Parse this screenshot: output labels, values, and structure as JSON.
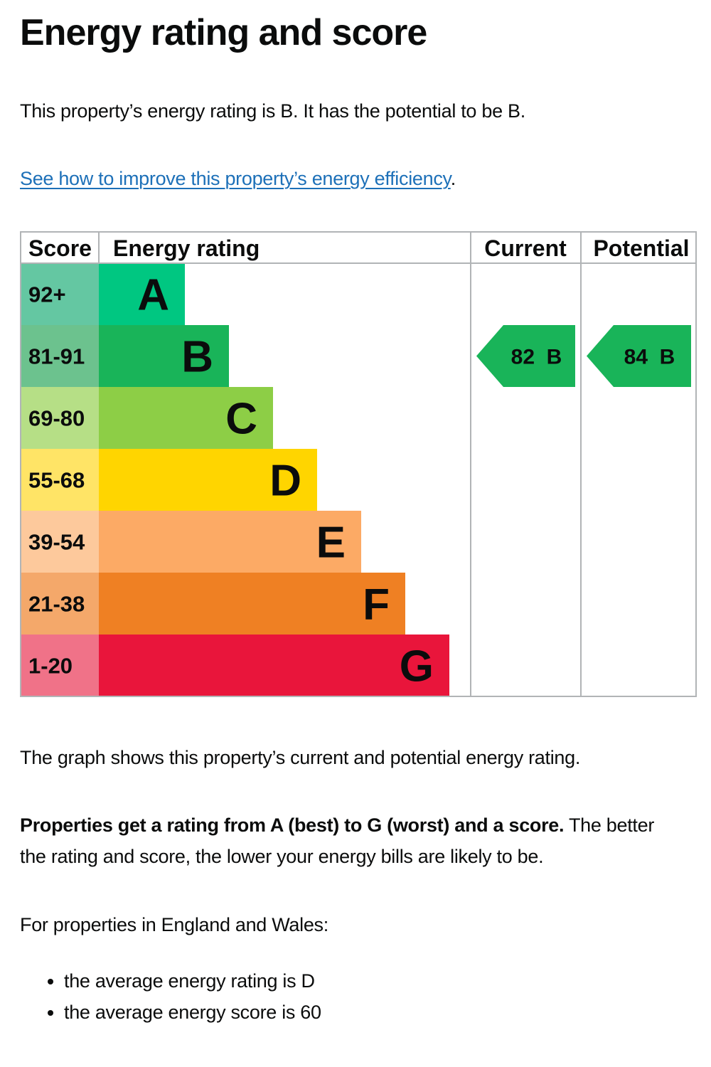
{
  "page": {
    "title": "Energy rating and score",
    "intro": "This property’s energy rating is B. It has the potential to be B.",
    "improve_link": "See how to improve this property’s energy efficiency",
    "improve_link_suffix": ".",
    "graph_caption": "The graph shows this property’s current and potential energy rating.",
    "ratings_bold": "Properties get a rating from A (best) to G (worst) and a score.",
    "ratings_rest_1": " The better",
    "ratings_rest_2": "the rating and score, the lower your energy bills are likely to be.",
    "england_wales": "For properties in England and Wales:",
    "bullets": [
      "the average energy rating is D",
      "the average energy score is 60"
    ]
  },
  "chart_data": {
    "type": "bar",
    "headers": {
      "score": "Score",
      "rating": "Energy rating",
      "current": "Current",
      "potential": "Potential"
    },
    "bands": [
      {
        "letter": "A",
        "range": "92+",
        "color": "#00c781",
        "score_color": "#64c7a2"
      },
      {
        "letter": "B",
        "range": "81-91",
        "color": "#19b459",
        "score_color": "#6cc28e"
      },
      {
        "letter": "C",
        "range": "69-80",
        "color": "#8dce46",
        "score_color": "#b6df86"
      },
      {
        "letter": "D",
        "range": "55-68",
        "color": "#ffd500",
        "score_color": "#ffe466"
      },
      {
        "letter": "E",
        "range": "39-54",
        "color": "#fcaa65",
        "score_color": "#fdc99c"
      },
      {
        "letter": "F",
        "range": "21-38",
        "color": "#ef8023",
        "score_color": "#f4a86a"
      },
      {
        "letter": "G",
        "range": "1-20",
        "color": "#e9153b",
        "score_color": "#f07288"
      }
    ],
    "current": {
      "score": 82,
      "rating": "B",
      "label": "82  B",
      "color": "#19b459"
    },
    "potential": {
      "score": 84,
      "rating": "B",
      "label": "84  B",
      "color": "#19b459"
    }
  }
}
